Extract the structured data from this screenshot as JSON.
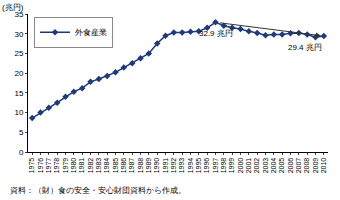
{
  "chart_data": {
    "type": "line",
    "ylabel": "(兆円)",
    "source": "資料：（財）食の安全・安心財団資料から作成。",
    "categories": [
      "1975",
      "1976",
      "1977",
      "1978",
      "1979",
      "1980",
      "1981",
      "1982",
      "1983",
      "1984",
      "1985",
      "1986",
      "1987",
      "1988",
      "1989",
      "1990",
      "1991",
      "1992",
      "1993",
      "1994",
      "1995",
      "1996",
      "1997",
      "1998",
      "1999",
      "2000",
      "2001",
      "2002",
      "2003",
      "2004",
      "2005",
      "2006",
      "2007",
      "2008",
      "2009",
      "2010"
    ],
    "series": [
      {
        "name": "外食産業",
        "color": "#1f3a7a",
        "marker": "diamond",
        "values": [
          8.6,
          10.0,
          11.2,
          12.5,
          14.0,
          15.3,
          16.2,
          17.8,
          18.5,
          19.3,
          20.2,
          21.4,
          22.5,
          23.8,
          25.0,
          27.5,
          29.5,
          30.3,
          30.3,
          30.5,
          30.6,
          31.5,
          32.9,
          32.0,
          31.5,
          31.2,
          30.6,
          30.2,
          29.6,
          29.8,
          29.8,
          30.1,
          30.2,
          29.8,
          29.1,
          29.4
        ]
      }
    ],
    "annotations": [
      {
        "text": "32.9 兆円",
        "x": "1997",
        "y": 32.9
      },
      {
        "text": "29.4 兆円",
        "x": "2010",
        "y": 29.4
      }
    ],
    "ylim": [
      0,
      35
    ],
    "yticks": [
      0,
      5,
      10,
      15,
      20,
      25,
      30,
      35
    ],
    "grid": false,
    "legend": "top-left"
  }
}
